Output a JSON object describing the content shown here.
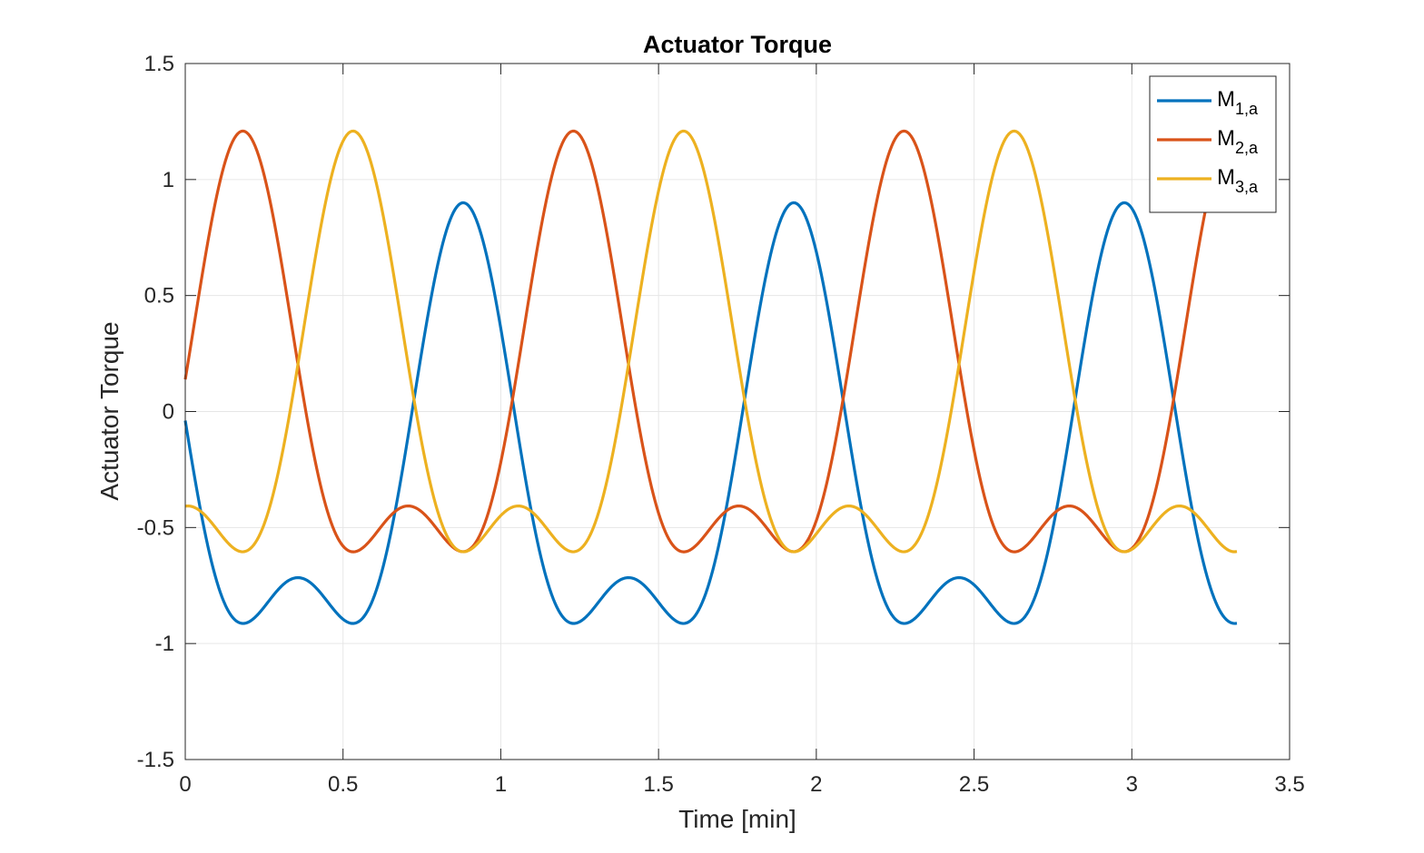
{
  "chart_data": {
    "type": "line",
    "title": "Actuator Torque",
    "xlabel": "Time [min]",
    "ylabel": "Actuator Torque",
    "xlim": [
      0,
      3.5
    ],
    "ylim": [
      -1.5,
      1.5
    ],
    "xticks": [
      0,
      0.5,
      1,
      1.5,
      2,
      2.5,
      3,
      3.5
    ],
    "xtick_labels": [
      "0",
      "0.5",
      "1",
      "1.5",
      "2",
      "2.5",
      "3",
      "3.5"
    ],
    "yticks": [
      -1.5,
      -1,
      -0.5,
      0,
      0.5,
      1,
      1.5
    ],
    "ytick_labels": [
      "-1.5",
      "-1",
      "-0.5",
      "0",
      "0.5",
      "1",
      "1.5"
    ],
    "grid": true,
    "legend_position": "top-right",
    "x_range": [
      0,
      3.333
    ],
    "sample_count": 600,
    "series": [
      {
        "name_main": "M",
        "name_sub": "1,a",
        "color": "#0072BD",
        "offset": -0.309,
        "components": [
          {
            "amplitude": 0.808,
            "frequency": 0.9545,
            "phase": 1.0
          },
          {
            "amplitude": 0.401,
            "frequency": 1.909,
            "phase": 2.0
          }
        ]
      },
      {
        "name_main": "M",
        "name_sub": "2,a",
        "color": "#D95319",
        "offset": 0.0,
        "components": [
          {
            "amplitude": 0.808,
            "frequency": 0.9545,
            "phase": -1.094
          },
          {
            "amplitude": 0.401,
            "frequency": 1.909,
            "phase": -2.189
          }
        ]
      },
      {
        "name_main": "M",
        "name_sub": "3,a",
        "color": "#EDB120",
        "offset": 0.0,
        "components": [
          {
            "amplitude": 0.808,
            "frequency": 0.9545,
            "phase": -3.189
          },
          {
            "amplitude": 0.401,
            "frequency": 1.909,
            "phase": -6.378
          }
        ]
      }
    ]
  }
}
